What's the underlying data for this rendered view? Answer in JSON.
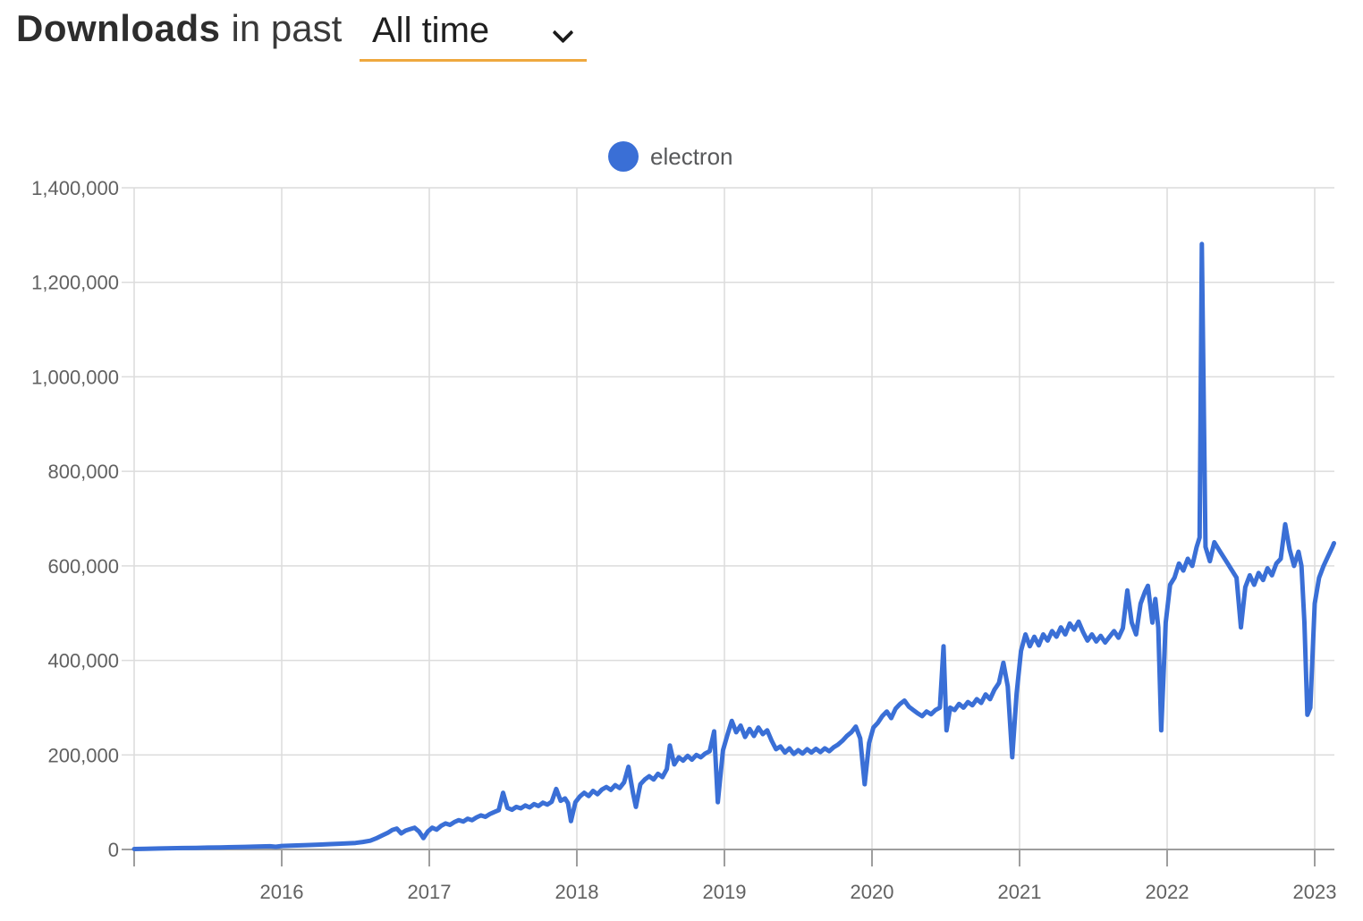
{
  "header": {
    "title_bold": "Downloads",
    "title_rest": "in past",
    "range_value": "All time"
  },
  "legend": {
    "series_label": "electron"
  },
  "colors": {
    "line": "#3a6fd6",
    "accent": "#efa83e",
    "grid": "#dcdcdc",
    "axis": "#9e9e9e",
    "tick_label": "#616161"
  },
  "chart_data": {
    "type": "line",
    "title": "Downloads in past All time",
    "series_name": "electron",
    "x_unit": "decimal_year",
    "xlim": [
      2015.0,
      2023.13
    ],
    "ylim": [
      0,
      1400000
    ],
    "grid": true,
    "legend_position": "top-center",
    "x_ticks": [
      {
        "year": 2015,
        "label": ""
      },
      {
        "year": 2016,
        "label": "2016"
      },
      {
        "year": 2017,
        "label": "2017"
      },
      {
        "year": 2018,
        "label": "2018"
      },
      {
        "year": 2019,
        "label": "2019"
      },
      {
        "year": 2020,
        "label": "2020"
      },
      {
        "year": 2021,
        "label": "2021"
      },
      {
        "year": 2022,
        "label": "2022"
      },
      {
        "year": 2023,
        "label": "2023"
      }
    ],
    "y_ticks": [
      {
        "value": 0,
        "label": "0"
      },
      {
        "value": 200000,
        "label": "200,000"
      },
      {
        "value": 400000,
        "label": "400,000"
      },
      {
        "value": 600000,
        "label": "600,000"
      },
      {
        "value": 800000,
        "label": "800,000"
      },
      {
        "value": 1000000,
        "label": "1,000,000"
      },
      {
        "value": 1200000,
        "label": "1,200,000"
      },
      {
        "value": 1400000,
        "label": "1,400,000"
      }
    ],
    "points": [
      [
        2015.0,
        1000
      ],
      [
        2015.08,
        1600
      ],
      [
        2015.17,
        2100
      ],
      [
        2015.25,
        2600
      ],
      [
        2015.33,
        3000
      ],
      [
        2015.42,
        3400
      ],
      [
        2015.5,
        3900
      ],
      [
        2015.58,
        4400
      ],
      [
        2015.67,
        4900
      ],
      [
        2015.75,
        5400
      ],
      [
        2015.83,
        6200
      ],
      [
        2015.92,
        6800
      ],
      [
        2015.96,
        5600
      ],
      [
        2016.0,
        7400
      ],
      [
        2016.08,
        8400
      ],
      [
        2016.17,
        9300
      ],
      [
        2016.25,
        10300
      ],
      [
        2016.33,
        11300
      ],
      [
        2016.42,
        12400
      ],
      [
        2016.5,
        13800
      ],
      [
        2016.55,
        15800
      ],
      [
        2016.6,
        18500
      ],
      [
        2016.64,
        23500
      ],
      [
        2016.68,
        29500
      ],
      [
        2016.72,
        35500
      ],
      [
        2016.75,
        41500
      ],
      [
        2016.78,
        44000
      ],
      [
        2016.81,
        34000
      ],
      [
        2016.84,
        40000
      ],
      [
        2016.87,
        43000
      ],
      [
        2016.9,
        46000
      ],
      [
        2016.93,
        38000
      ],
      [
        2016.96,
        24000
      ],
      [
        2016.99,
        38000
      ],
      [
        2017.02,
        46000
      ],
      [
        2017.05,
        42000
      ],
      [
        2017.08,
        50000
      ],
      [
        2017.11,
        55000
      ],
      [
        2017.14,
        52000
      ],
      [
        2017.17,
        58000
      ],
      [
        2017.2,
        62000
      ],
      [
        2017.23,
        59000
      ],
      [
        2017.26,
        65000
      ],
      [
        2017.29,
        62000
      ],
      [
        2017.32,
        68000
      ],
      [
        2017.35,
        72000
      ],
      [
        2017.38,
        69000
      ],
      [
        2017.41,
        75000
      ],
      [
        2017.44,
        79000
      ],
      [
        2017.47,
        83000
      ],
      [
        2017.5,
        120000
      ],
      [
        2017.53,
        88000
      ],
      [
        2017.56,
        84000
      ],
      [
        2017.59,
        90000
      ],
      [
        2017.62,
        87000
      ],
      [
        2017.65,
        93000
      ],
      [
        2017.68,
        89000
      ],
      [
        2017.71,
        96000
      ],
      [
        2017.74,
        92000
      ],
      [
        2017.77,
        99000
      ],
      [
        2017.8,
        95000
      ],
      [
        2017.83,
        101000
      ],
      [
        2017.86,
        128000
      ],
      [
        2017.89,
        103000
      ],
      [
        2017.92,
        108000
      ],
      [
        2017.94,
        98000
      ],
      [
        2017.96,
        60000
      ],
      [
        2017.99,
        100000
      ],
      [
        2018.02,
        112000
      ],
      [
        2018.05,
        120000
      ],
      [
        2018.08,
        113000
      ],
      [
        2018.11,
        124000
      ],
      [
        2018.14,
        117000
      ],
      [
        2018.17,
        127000
      ],
      [
        2018.2,
        132000
      ],
      [
        2018.23,
        126000
      ],
      [
        2018.26,
        136000
      ],
      [
        2018.29,
        130000
      ],
      [
        2018.32,
        142000
      ],
      [
        2018.35,
        175000
      ],
      [
        2018.38,
        120000
      ],
      [
        2018.4,
        90000
      ],
      [
        2018.43,
        138000
      ],
      [
        2018.46,
        148000
      ],
      [
        2018.49,
        155000
      ],
      [
        2018.52,
        148000
      ],
      [
        2018.55,
        160000
      ],
      [
        2018.58,
        153000
      ],
      [
        2018.61,
        170000
      ],
      [
        2018.63,
        220000
      ],
      [
        2018.66,
        180000
      ],
      [
        2018.69,
        195000
      ],
      [
        2018.72,
        188000
      ],
      [
        2018.75,
        198000
      ],
      [
        2018.78,
        190000
      ],
      [
        2018.81,
        200000
      ],
      [
        2018.84,
        195000
      ],
      [
        2018.87,
        203000
      ],
      [
        2018.9,
        208000
      ],
      [
        2018.93,
        250000
      ],
      [
        2018.955,
        100000
      ],
      [
        2018.99,
        210000
      ],
      [
        2019.02,
        242000
      ],
      [
        2019.05,
        272000
      ],
      [
        2019.08,
        248000
      ],
      [
        2019.11,
        262000
      ],
      [
        2019.14,
        238000
      ],
      [
        2019.17,
        255000
      ],
      [
        2019.2,
        240000
      ],
      [
        2019.23,
        258000
      ],
      [
        2019.26,
        244000
      ],
      [
        2019.29,
        252000
      ],
      [
        2019.32,
        230000
      ],
      [
        2019.35,
        212000
      ],
      [
        2019.38,
        218000
      ],
      [
        2019.41,
        205000
      ],
      [
        2019.44,
        214000
      ],
      [
        2019.47,
        202000
      ],
      [
        2019.5,
        210000
      ],
      [
        2019.53,
        203000
      ],
      [
        2019.56,
        212000
      ],
      [
        2019.59,
        205000
      ],
      [
        2019.62,
        213000
      ],
      [
        2019.65,
        206000
      ],
      [
        2019.68,
        214000
      ],
      [
        2019.71,
        208000
      ],
      [
        2019.74,
        216000
      ],
      [
        2019.77,
        222000
      ],
      [
        2019.8,
        230000
      ],
      [
        2019.83,
        240000
      ],
      [
        2019.86,
        248000
      ],
      [
        2019.89,
        260000
      ],
      [
        2019.92,
        235000
      ],
      [
        2019.95,
        138000
      ],
      [
        2019.98,
        225000
      ],
      [
        2020.01,
        258000
      ],
      [
        2020.04,
        268000
      ],
      [
        2020.07,
        282000
      ],
      [
        2020.1,
        292000
      ],
      [
        2020.13,
        278000
      ],
      [
        2020.16,
        298000
      ],
      [
        2020.19,
        308000
      ],
      [
        2020.22,
        315000
      ],
      [
        2020.25,
        302000
      ],
      [
        2020.28,
        295000
      ],
      [
        2020.31,
        288000
      ],
      [
        2020.34,
        282000
      ],
      [
        2020.37,
        292000
      ],
      [
        2020.4,
        286000
      ],
      [
        2020.43,
        295000
      ],
      [
        2020.46,
        300000
      ],
      [
        2020.485,
        430000
      ],
      [
        2020.505,
        252000
      ],
      [
        2020.53,
        300000
      ],
      [
        2020.56,
        295000
      ],
      [
        2020.59,
        308000
      ],
      [
        2020.62,
        300000
      ],
      [
        2020.65,
        312000
      ],
      [
        2020.68,
        305000
      ],
      [
        2020.71,
        318000
      ],
      [
        2020.74,
        310000
      ],
      [
        2020.77,
        328000
      ],
      [
        2020.8,
        318000
      ],
      [
        2020.83,
        338000
      ],
      [
        2020.86,
        352000
      ],
      [
        2020.89,
        395000
      ],
      [
        2020.92,
        345000
      ],
      [
        2020.95,
        195000
      ],
      [
        2020.98,
        330000
      ],
      [
        2021.01,
        420000
      ],
      [
        2021.04,
        455000
      ],
      [
        2021.07,
        430000
      ],
      [
        2021.1,
        450000
      ],
      [
        2021.13,
        432000
      ],
      [
        2021.16,
        455000
      ],
      [
        2021.19,
        442000
      ],
      [
        2021.22,
        462000
      ],
      [
        2021.25,
        450000
      ],
      [
        2021.28,
        470000
      ],
      [
        2021.31,
        455000
      ],
      [
        2021.34,
        478000
      ],
      [
        2021.37,
        465000
      ],
      [
        2021.4,
        482000
      ],
      [
        2021.43,
        460000
      ],
      [
        2021.46,
        442000
      ],
      [
        2021.49,
        455000
      ],
      [
        2021.52,
        440000
      ],
      [
        2021.55,
        452000
      ],
      [
        2021.58,
        438000
      ],
      [
        2021.61,
        450000
      ],
      [
        2021.64,
        462000
      ],
      [
        2021.67,
        448000
      ],
      [
        2021.7,
        468000
      ],
      [
        2021.73,
        548000
      ],
      [
        2021.76,
        480000
      ],
      [
        2021.79,
        455000
      ],
      [
        2021.82,
        520000
      ],
      [
        2021.85,
        545000
      ],
      [
        2021.87,
        558000
      ],
      [
        2021.9,
        480000
      ],
      [
        2021.92,
        530000
      ],
      [
        2021.94,
        470000
      ],
      [
        2021.96,
        252000
      ],
      [
        2021.99,
        480000
      ],
      [
        2022.02,
        560000
      ],
      [
        2022.05,
        575000
      ],
      [
        2022.08,
        605000
      ],
      [
        2022.11,
        590000
      ],
      [
        2022.14,
        615000
      ],
      [
        2022.17,
        600000
      ],
      [
        2022.2,
        640000
      ],
      [
        2022.22,
        660000
      ],
      [
        2022.235,
        1281000
      ],
      [
        2022.26,
        640000
      ],
      [
        2022.29,
        610000
      ],
      [
        2022.32,
        650000
      ],
      [
        2022.35,
        635000
      ],
      [
        2022.38,
        620000
      ],
      [
        2022.41,
        605000
      ],
      [
        2022.44,
        590000
      ],
      [
        2022.47,
        575000
      ],
      [
        2022.5,
        470000
      ],
      [
        2022.53,
        555000
      ],
      [
        2022.56,
        580000
      ],
      [
        2022.59,
        560000
      ],
      [
        2022.62,
        585000
      ],
      [
        2022.65,
        570000
      ],
      [
        2022.68,
        595000
      ],
      [
        2022.71,
        580000
      ],
      [
        2022.74,
        605000
      ],
      [
        2022.77,
        615000
      ],
      [
        2022.8,
        688000
      ],
      [
        2022.83,
        635000
      ],
      [
        2022.86,
        600000
      ],
      [
        2022.89,
        630000
      ],
      [
        2022.91,
        600000
      ],
      [
        2022.93,
        480000
      ],
      [
        2022.95,
        285000
      ],
      [
        2022.97,
        300000
      ],
      [
        2023.0,
        520000
      ],
      [
        2023.03,
        575000
      ],
      [
        2023.06,
        600000
      ],
      [
        2023.09,
        620000
      ],
      [
        2023.12,
        640000
      ],
      [
        2023.13,
        648000
      ]
    ]
  }
}
